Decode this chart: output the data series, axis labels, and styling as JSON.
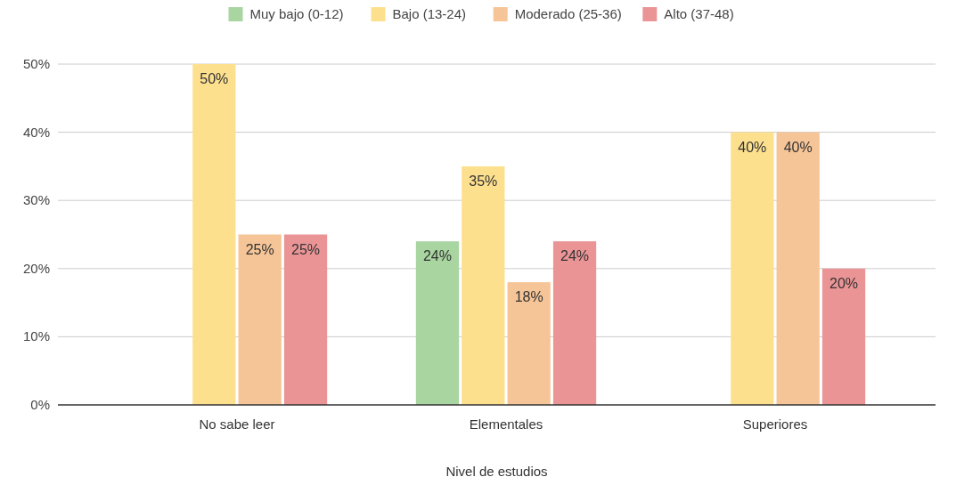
{
  "chart_data": {
    "type": "bar",
    "xlabel": "Nivel de estudios",
    "categories": [
      "No sabe leer",
      "Elementales",
      "Superiores"
    ],
    "series": [
      {
        "name": "Muy bajo (0-12)",
        "color": "#a8d5a0",
        "values": [
          null,
          24,
          null
        ],
        "value_labels": [
          null,
          "24%",
          null
        ]
      },
      {
        "name": "Bajo (13-24)",
        "color": "#fde08e",
        "values": [
          50,
          35,
          40
        ],
        "value_labels": [
          "50%",
          "35%",
          "40%"
        ]
      },
      {
        "name": "Moderado (25-36)",
        "color": "#f6c597",
        "values": [
          25,
          18,
          40
        ],
        "value_labels": [
          "25%",
          "18%",
          "40%"
        ]
      },
      {
        "name": "Alto (37-48)",
        "color": "#eb9496",
        "values": [
          25,
          24,
          20
        ],
        "value_labels": [
          "25%",
          "24%",
          "20%"
        ]
      }
    ],
    "ylim": [
      0,
      50
    ],
    "yticks": [
      {
        "value": 0,
        "label": "0%"
      },
      {
        "value": 10,
        "label": "10%"
      },
      {
        "value": 20,
        "label": "20%"
      },
      {
        "value": 30,
        "label": "30%"
      },
      {
        "value": 40,
        "label": "40%"
      },
      {
        "value": 50,
        "label": "50%"
      }
    ],
    "grid": "y",
    "legend": "top"
  }
}
